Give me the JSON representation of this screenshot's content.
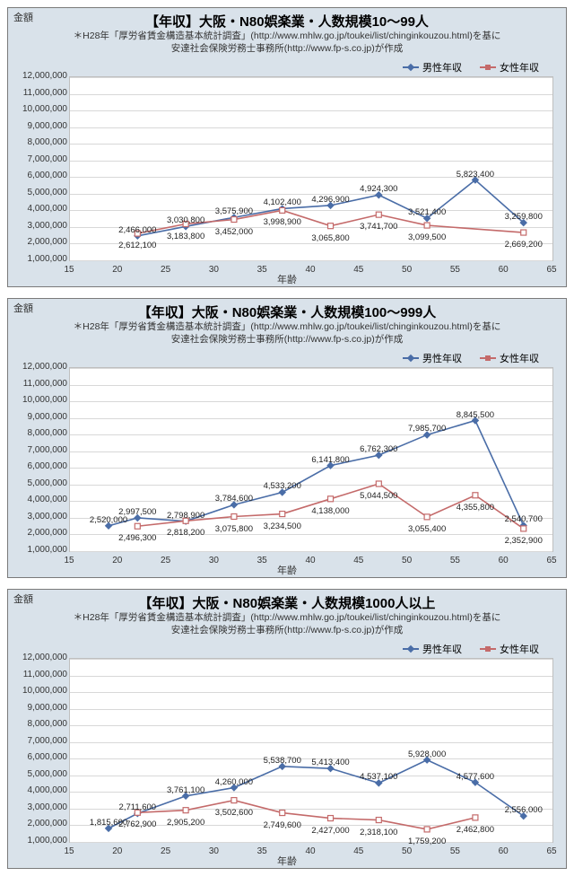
{
  "global": {
    "ylabel": "金額",
    "xlabel": "年齢",
    "note_line1": "＊H28年「厚労省賃金構造基本統計調査」(http://www.mhlw.go.jp/toukei/list/chinginkouzou.html)を基に",
    "note_line2": "安達社会保険労務士事務所(http://www.fp-s.co.jp)が作成",
    "legend_m": "男性年収",
    "legend_f": "女性年収",
    "xmin": 15,
    "xmax": 65,
    "xtick_step": 5,
    "ymin": 1000000,
    "ymax": 12000000,
    "ytick_step": 1000000,
    "color_m": "#4a6da7",
    "color_f": "#c46a6a",
    "bg": "#d9e2ea",
    "grid_color": "#d8d8d8",
    "title_fontsize": 15,
    "label_fontsize": 11
  },
  "charts": [
    {
      "title": "【年収】大阪・N80娯楽業・人数規模10～99人",
      "x": [
        22,
        27,
        32,
        37,
        42,
        47,
        52,
        57,
        62
      ],
      "m": [
        2466000,
        3030800,
        3575900,
        4102400,
        4296900,
        4924300,
        3521400,
        5823400,
        3259800
      ],
      "f": [
        2612100,
        3183800,
        3452000,
        3998900,
        3065800,
        3741700,
        3099500,
        null,
        2669200
      ],
      "m_label_dy": [
        -12,
        -12,
        -12,
        -12,
        -12,
        -12,
        -12,
        -12,
        -12
      ],
      "f_label_dy": [
        8,
        8,
        8,
        8,
        8,
        8,
        8,
        0,
        8
      ]
    },
    {
      "title": "【年収】大阪・N80娯楽業・人数規模100～999人",
      "x": [
        19,
        22,
        27,
        32,
        37,
        42,
        47,
        52,
        57,
        62
      ],
      "m": [
        2520000,
        2997500,
        2798900,
        3784600,
        4533200,
        6141800,
        6762300,
        7985700,
        8845500,
        2540700
      ],
      "f": [
        null,
        2496300,
        2818200,
        3075800,
        3234500,
        4138000,
        5044500,
        3055400,
        4355800,
        2352900
      ],
      "m_label_dy": [
        -12,
        -12,
        -12,
        -12,
        -12,
        -12,
        -12,
        -12,
        -12,
        -12
      ],
      "f_label_dy": [
        0,
        8,
        8,
        8,
        8,
        8,
        8,
        8,
        8,
        8
      ]
    },
    {
      "title": "【年収】大阪・N80娯楽業・人数規模1000人以上",
      "x": [
        19,
        22,
        27,
        32,
        37,
        42,
        47,
        52,
        57,
        62
      ],
      "m": [
        1815600,
        2711600,
        3761100,
        4260000,
        5538700,
        5413400,
        4537100,
        5928000,
        4577600,
        2556000
      ],
      "f": [
        null,
        2762900,
        2905200,
        3502600,
        2749600,
        2427000,
        2318100,
        1759200,
        2462800,
        null
      ],
      "m_label_dy": [
        -12,
        -12,
        -12,
        -12,
        -12,
        -12,
        -12,
        -12,
        -12,
        -12
      ],
      "f_label_dy": [
        0,
        8,
        8,
        8,
        8,
        8,
        8,
        8,
        8,
        0
      ]
    }
  ]
}
